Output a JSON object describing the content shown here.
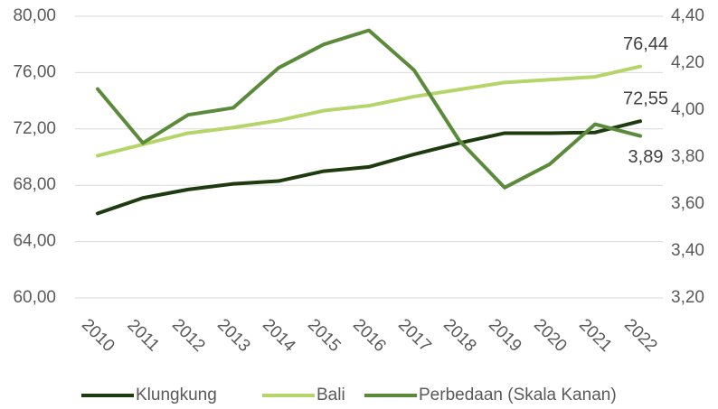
{
  "chart_data": {
    "type": "line",
    "categories": [
      "2010",
      "2011",
      "2012",
      "2013",
      "2014",
      "2015",
      "2016",
      "2017",
      "2018",
      "2019",
      "2020",
      "2021",
      "2022"
    ],
    "series": [
      {
        "name": "Klungkung",
        "color": "#1e3a0f",
        "values": [
          66.0,
          67.1,
          67.7,
          68.1,
          68.3,
          69.0,
          69.3,
          70.2,
          71.0,
          71.7,
          71.7,
          71.75,
          72.55
        ],
        "value_labels": [
          null,
          null,
          null,
          null,
          null,
          null,
          null,
          null,
          null,
          null,
          null,
          null,
          "72,55"
        ]
      },
      {
        "name": "Bali",
        "color": "#b5d56a",
        "values": [
          70.1,
          70.9,
          71.7,
          72.1,
          72.6,
          73.3,
          73.65,
          74.3,
          74.8,
          75.3,
          75.5,
          75.7,
          76.44
        ],
        "value_labels": [
          null,
          null,
          null,
          null,
          null,
          null,
          null,
          null,
          null,
          null,
          null,
          null,
          "76,44"
        ]
      },
      {
        "name": "Perbedaan (Skala Kanan)",
        "color": "#5a8a3a",
        "axis": "y2",
        "values": [
          4.09,
          3.86,
          3.98,
          4.01,
          4.18,
          4.28,
          4.34,
          4.17,
          3.87,
          3.67,
          3.77,
          3.94,
          3.89
        ],
        "value_labels": [
          null,
          null,
          null,
          null,
          null,
          null,
          null,
          null,
          null,
          null,
          null,
          null,
          "3,89"
        ]
      }
    ],
    "ylim": [
      60,
      80
    ],
    "yticks": [
      {
        "value": 60,
        "label": "60,00"
      },
      {
        "value": 64,
        "label": "64,00"
      },
      {
        "value": 68,
        "label": "68,00"
      },
      {
        "value": 72,
        "label": "72,00"
      },
      {
        "value": 76,
        "label": "76,00"
      },
      {
        "value": 80,
        "label": "80,00"
      }
    ],
    "y2lim": [
      3.2,
      4.4
    ],
    "y2ticks": [
      {
        "value": 3.2,
        "label": "3,20"
      },
      {
        "value": 3.4,
        "label": "3,40"
      },
      {
        "value": 3.6,
        "label": "3,60"
      },
      {
        "value": 3.8,
        "label": "3,80"
      },
      {
        "value": 4.0,
        "label": "4,00"
      },
      {
        "value": 4.2,
        "label": "4,20"
      },
      {
        "value": 4.4,
        "label": "4,40"
      }
    ],
    "grid": true,
    "legend": "bottom"
  }
}
